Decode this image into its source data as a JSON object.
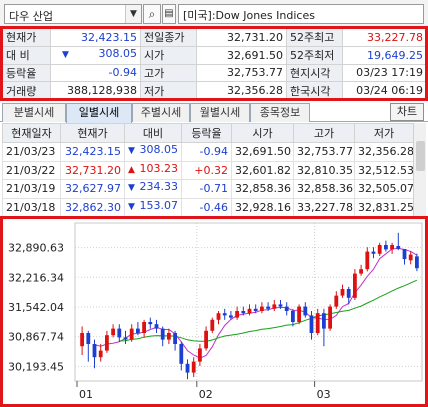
{
  "symbol": {
    "name": "다우 산업",
    "title": "[미국]:Dow Jones Indices"
  },
  "quote": {
    "rows": [
      [
        {
          "label": "현재가",
          "value": "32,423.15",
          "color": "blue"
        },
        {
          "label": "전일종가",
          "value": "32,731.20"
        },
        {
          "label": "52주최고",
          "value": "33,227.78",
          "color": "red"
        }
      ],
      [
        {
          "label": "대  비",
          "value": "308.05",
          "color": "blue",
          "arrow": "▼"
        },
        {
          "label": "시가",
          "value": "32,691.50"
        },
        {
          "label": "52주최저",
          "value": "19,649.25",
          "color": "blue"
        }
      ],
      [
        {
          "label": "등락율",
          "value": "-0.94",
          "color": "blue"
        },
        {
          "label": "고가",
          "value": "32,753.77"
        },
        {
          "label": "현지시각",
          "value": "03/23 17:19"
        }
      ],
      [
        {
          "label": "거래량",
          "value": "388,128,938"
        },
        {
          "label": "저가",
          "value": "32,356.28"
        },
        {
          "label": "한국시각",
          "value": "03/24 06:19"
        }
      ]
    ]
  },
  "tabs": [
    "분별시세",
    "일별시세",
    "주별시세",
    "월별시세",
    "종목정보"
  ],
  "active_tab": 1,
  "chart_button": "차트",
  "daily": {
    "headers": [
      "현재일자",
      "현재가",
      "대비",
      "등락율",
      "시가",
      "고가",
      "저가"
    ],
    "rows": [
      {
        "date": "21/03/23",
        "price": "32,423.15",
        "arrow": "▼",
        "change": "308.05",
        "rate": "-0.94",
        "open": "32,691.50",
        "high": "32,753.77",
        "low": "32,356.28",
        "color": "blue"
      },
      {
        "date": "21/03/22",
        "price": "32,731.20",
        "arrow": "▲",
        "change": "103.23",
        "rate": "+0.32",
        "open": "32,601.82",
        "high": "32,810.35",
        "low": "32,512.53",
        "color": "red"
      },
      {
        "date": "21/03/19",
        "price": "32,627.97",
        "arrow": "▼",
        "change": "234.33",
        "rate": "-0.71",
        "open": "32,858.36",
        "high": "32,858.36",
        "low": "32,505.07",
        "color": "blue"
      },
      {
        "date": "21/03/18",
        "price": "32,862.30",
        "arrow": "▼",
        "change": "153.07",
        "rate": "-0.46",
        "open": "32,928.16",
        "high": "33,227.78",
        "low": "32,831.25",
        "color": "blue"
      }
    ]
  },
  "colors": {
    "up": "#dd1111",
    "down": "#1c3fd0",
    "ma_short": "#c032c8",
    "ma_long": "#18a018",
    "highlight": "#e0151a"
  },
  "chart_data": {
    "type": "candlestick",
    "y_ticks": [
      "32,890.63",
      "32,216.34",
      "31,542.04",
      "30,867.74",
      "30,193.45"
    ],
    "y_tick_values": [
      32890.63,
      32216.34,
      31542.04,
      30867.74,
      30193.45
    ],
    "ylim": [
      29860,
      33450
    ],
    "x_ticks": [
      "01",
      "02",
      "03"
    ],
    "x_tick_at": [
      0,
      19,
      38
    ],
    "candles": [
      {
        "o": 30650,
        "c": 30950,
        "h": 31100,
        "l": 30450
      },
      {
        "o": 30950,
        "c": 30700,
        "h": 31000,
        "l": 30300
      },
      {
        "o": 30700,
        "c": 30400,
        "h": 30800,
        "l": 30150
      },
      {
        "o": 30400,
        "c": 30550,
        "h": 30700,
        "l": 30300
      },
      {
        "o": 30550,
        "c": 30900,
        "h": 31000,
        "l": 30500
      },
      {
        "o": 30900,
        "c": 31050,
        "h": 31150,
        "l": 30850
      },
      {
        "o": 31050,
        "c": 30850,
        "h": 31150,
        "l": 30750
      },
      {
        "o": 30850,
        "c": 30800,
        "h": 31000,
        "l": 30700
      },
      {
        "o": 30800,
        "c": 31050,
        "h": 31150,
        "l": 30750
      },
      {
        "o": 31050,
        "c": 30950,
        "h": 31200,
        "l": 30900
      },
      {
        "o": 30950,
        "c": 31200,
        "h": 31250,
        "l": 30850
      },
      {
        "o": 31200,
        "c": 31150,
        "h": 31300,
        "l": 31050
      },
      {
        "o": 31150,
        "c": 31050,
        "h": 31250,
        "l": 30950
      },
      {
        "o": 31050,
        "c": 30800,
        "h": 31100,
        "l": 30650
      },
      {
        "o": 30800,
        "c": 30950,
        "h": 31050,
        "l": 30700
      },
      {
        "o": 30950,
        "c": 30700,
        "h": 31000,
        "l": 30550
      },
      {
        "o": 30700,
        "c": 30250,
        "h": 30750,
        "l": 30100
      },
      {
        "o": 30250,
        "c": 30050,
        "h": 30350,
        "l": 29900
      },
      {
        "o": 30050,
        "c": 30300,
        "h": 30400,
        "l": 29950
      },
      {
        "o": 30300,
        "c": 30600,
        "h": 30700,
        "l": 30200
      },
      {
        "o": 30600,
        "c": 31000,
        "h": 31100,
        "l": 30550
      },
      {
        "o": 31000,
        "c": 31250,
        "h": 31300,
        "l": 30950
      },
      {
        "o": 31250,
        "c": 31400,
        "h": 31450,
        "l": 31150
      },
      {
        "o": 31400,
        "c": 31350,
        "h": 31500,
        "l": 31250
      },
      {
        "o": 31350,
        "c": 31300,
        "h": 31450,
        "l": 31250
      },
      {
        "o": 31300,
        "c": 31450,
        "h": 31550,
        "l": 31250
      },
      {
        "o": 31450,
        "c": 31400,
        "h": 31550,
        "l": 31350
      },
      {
        "o": 31400,
        "c": 31500,
        "h": 31600,
        "l": 31350
      },
      {
        "o": 31500,
        "c": 31450,
        "h": 31600,
        "l": 31400
      },
      {
        "o": 31450,
        "c": 31550,
        "h": 31650,
        "l": 31400
      },
      {
        "o": 31550,
        "c": 31500,
        "h": 31650,
        "l": 31450
      },
      {
        "o": 31500,
        "c": 31600,
        "h": 31700,
        "l": 31450
      },
      {
        "o": 31600,
        "c": 31550,
        "h": 31700,
        "l": 31500
      },
      {
        "o": 31550,
        "c": 31450,
        "h": 31650,
        "l": 31350
      },
      {
        "o": 31450,
        "c": 31200,
        "h": 31500,
        "l": 31100
      },
      {
        "o": 31200,
        "c": 31550,
        "h": 31600,
        "l": 31150
      },
      {
        "o": 31550,
        "c": 31350,
        "h": 31650,
        "l": 31300
      },
      {
        "o": 31350,
        "c": 30950,
        "h": 31450,
        "l": 30800
      },
      {
        "o": 30950,
        "c": 31400,
        "h": 31500,
        "l": 30900
      },
      {
        "o": 31400,
        "c": 31050,
        "h": 31500,
        "l": 30650
      },
      {
        "o": 31050,
        "c": 31550,
        "h": 31600,
        "l": 31000
      },
      {
        "o": 31550,
        "c": 31800,
        "h": 31900,
        "l": 31500
      },
      {
        "o": 31800,
        "c": 31950,
        "h": 32050,
        "l": 31750
      },
      {
        "o": 31950,
        "c": 31750,
        "h": 32000,
        "l": 31600
      },
      {
        "o": 31750,
        "c": 32300,
        "h": 32400,
        "l": 31700
      },
      {
        "o": 32300,
        "c": 32400,
        "h": 32500,
        "l": 32250
      },
      {
        "o": 32400,
        "c": 32800,
        "h": 32900,
        "l": 32350
      },
      {
        "o": 32800,
        "c": 32750,
        "h": 32900,
        "l": 32650
      },
      {
        "o": 32750,
        "c": 32950,
        "h": 33000,
        "l": 32700
      },
      {
        "o": 32950,
        "c": 32850,
        "h": 33050,
        "l": 32800
      },
      {
        "o": 32850,
        "c": 32950,
        "h": 33000,
        "l": 32750
      },
      {
        "o": 32928.16,
        "c": 32862.3,
        "h": 33227.78,
        "l": 32831.25
      },
      {
        "o": 32858.36,
        "c": 32627.97,
        "h": 32858.36,
        "l": 32505.07
      },
      {
        "o": 32601.82,
        "c": 32731.2,
        "h": 32810.35,
        "l": 32512.53
      },
      {
        "o": 32691.5,
        "c": 32423.15,
        "h": 32753.77,
        "l": 32356.28
      }
    ]
  }
}
